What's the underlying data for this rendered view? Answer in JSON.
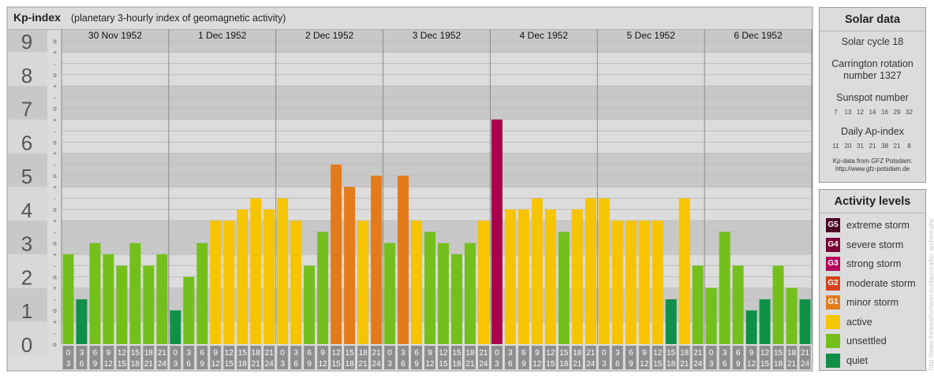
{
  "header": {
    "title": "Kp-index",
    "subtitle": "(planetary 3-hourly index of geomagnetic activity)"
  },
  "chart_data": {
    "type": "bar",
    "title": "Kp-index",
    "subtitle": "(planetary 3-hourly index of geomagnetic activity)",
    "days": [
      "30 Nov 1952",
      "1 Dec 1952",
      "2 Dec 1952",
      "3 Dec 1952",
      "4 Dec 1952",
      "5 Dec 1952",
      "6 Dec 1952"
    ],
    "hour_ranges": [
      [
        "0",
        "3"
      ],
      [
        "3",
        "6"
      ],
      [
        "6",
        "9"
      ],
      [
        "9",
        "12"
      ],
      [
        "12",
        "15"
      ],
      [
        "15",
        "18"
      ],
      [
        "18",
        "21"
      ],
      [
        "21",
        "24"
      ]
    ],
    "ylabels": [
      "0",
      "1",
      "2",
      "3",
      "4",
      "5",
      "6",
      "7",
      "8",
      "9"
    ],
    "sublevels": [
      "+",
      "o",
      "-"
    ],
    "ylim": [
      0,
      9.33
    ],
    "values": [
      2.67,
      1.33,
      3.0,
      2.67,
      2.33,
      3.0,
      2.33,
      2.67,
      1.0,
      2.0,
      3.0,
      3.67,
      3.67,
      4.0,
      4.33,
      4.0,
      4.33,
      3.67,
      2.33,
      3.33,
      5.33,
      4.67,
      3.67,
      5.0,
      3.0,
      5.0,
      3.67,
      3.33,
      3.0,
      2.67,
      3.0,
      3.67,
      6.67,
      4.0,
      4.0,
      4.33,
      4.0,
      3.33,
      4.0,
      4.33,
      4.33,
      3.67,
      3.67,
      3.67,
      3.67,
      1.33,
      4.33,
      2.33,
      1.67,
      3.33,
      2.33,
      1.0,
      1.33,
      2.33,
      1.67,
      1.33
    ],
    "colors": {
      "quiet": "#0e9146",
      "unsettled": "#74bf1c",
      "active": "#f6c400",
      "minor": "#e47b1a",
      "strong": "#a8004d",
      "plot_bg_dark": "#c8c8c8",
      "plot_bg_light": "#dcdcdc"
    }
  },
  "solar": {
    "title": "Solar data",
    "cycle": "Solar cycle 18",
    "carrington_line1": "Carrington rotation",
    "carrington_line2": "number 1327",
    "sunspot_label": "Sunspot number",
    "sunspot_values": [
      "7",
      "13",
      "12",
      "14",
      "16",
      "29",
      "32"
    ],
    "ap_label": "Daily Ap-index",
    "ap_values": [
      "11",
      "20",
      "31",
      "21",
      "38",
      "21",
      "8"
    ],
    "source_line1": "Kp-data from GFZ Potsdam:",
    "source_line2": "http://www.gfz-potsdam.de"
  },
  "activity": {
    "title": "Activity levels",
    "items": [
      {
        "badge": "G5",
        "label": "extreme storm",
        "color": "#4a0020"
      },
      {
        "badge": "G4",
        "label": "severe storm",
        "color": "#7a0035"
      },
      {
        "badge": "G3",
        "label": "strong storm",
        "color": "#b5005a"
      },
      {
        "badge": "G2",
        "label": "moderate storm",
        "color": "#d6421a"
      },
      {
        "badge": "G1",
        "label": "minor storm",
        "color": "#e47b1a"
      },
      {
        "badge": "",
        "label": "active",
        "color": "#f6c400"
      },
      {
        "badge": "",
        "label": "unsettled",
        "color": "#74bf1c"
      },
      {
        "badge": "",
        "label": "quiet",
        "color": "#0e9146"
      }
    ]
  },
  "credit": "http://www.theweatherlayer.eu/daurora/kp_archive.php"
}
